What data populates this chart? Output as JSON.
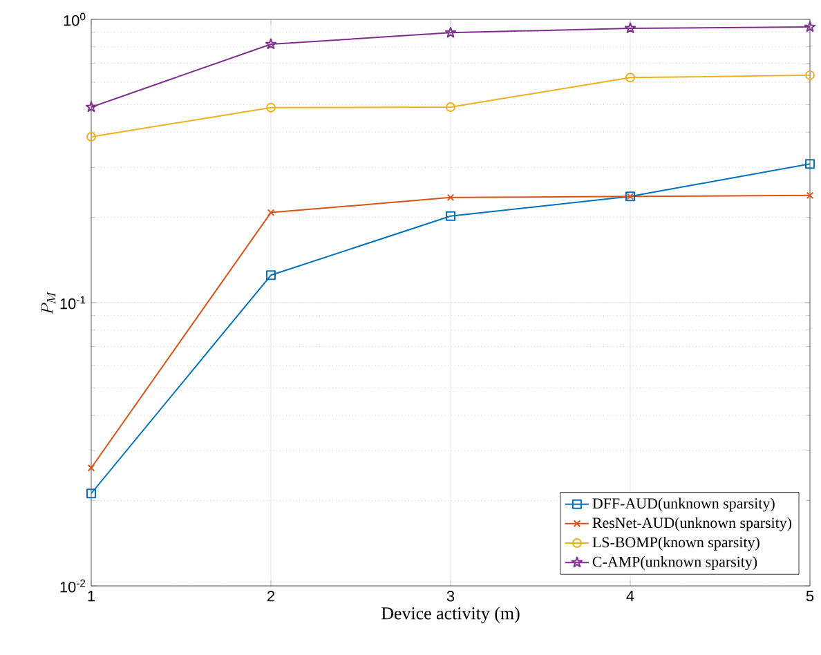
{
  "chart_data": {
    "type": "line",
    "xlabel": "Device activity (m)",
    "ylabel": "P_M",
    "x": [
      1,
      2,
      3,
      4,
      5
    ],
    "log": "y",
    "grid": true,
    "legend": "bottom right",
    "xlim": [
      1,
      5
    ],
    "ylim": [
      0.01,
      1
    ],
    "xticks": [
      1,
      2,
      3,
      4,
      5
    ],
    "yticks": [
      {
        "value": 0.01,
        "label": "10$^{-2}$"
      },
      {
        "value": 0.1,
        "label": "10$^{-1}$"
      },
      {
        "value": 1,
        "label": "10$^{0}$"
      }
    ],
    "series": [
      {
        "name": "DFF-AUD(unknown sparsity)",
        "color": "#0072bd",
        "marker": "square",
        "values": [
          0.0212,
          0.125,
          0.202,
          0.237,
          0.309
        ]
      },
      {
        "name": "ResNet-AUD(unknown sparsity)",
        "color": "#d95319",
        "marker": "cross",
        "values": [
          0.0261,
          0.208,
          0.235,
          0.237,
          0.239
        ]
      },
      {
        "name": "LS-BOMP(known sparsity)",
        "color": "#edb120",
        "marker": "circle",
        "values": [
          0.385,
          0.488,
          0.49,
          0.623,
          0.635
        ]
      },
      {
        "name": "C-AMP(unknown sparsity)",
        "color": "#7e2f8e",
        "marker": "star",
        "values": [
          0.49,
          0.817,
          0.897,
          0.93,
          0.94
        ]
      }
    ]
  }
}
